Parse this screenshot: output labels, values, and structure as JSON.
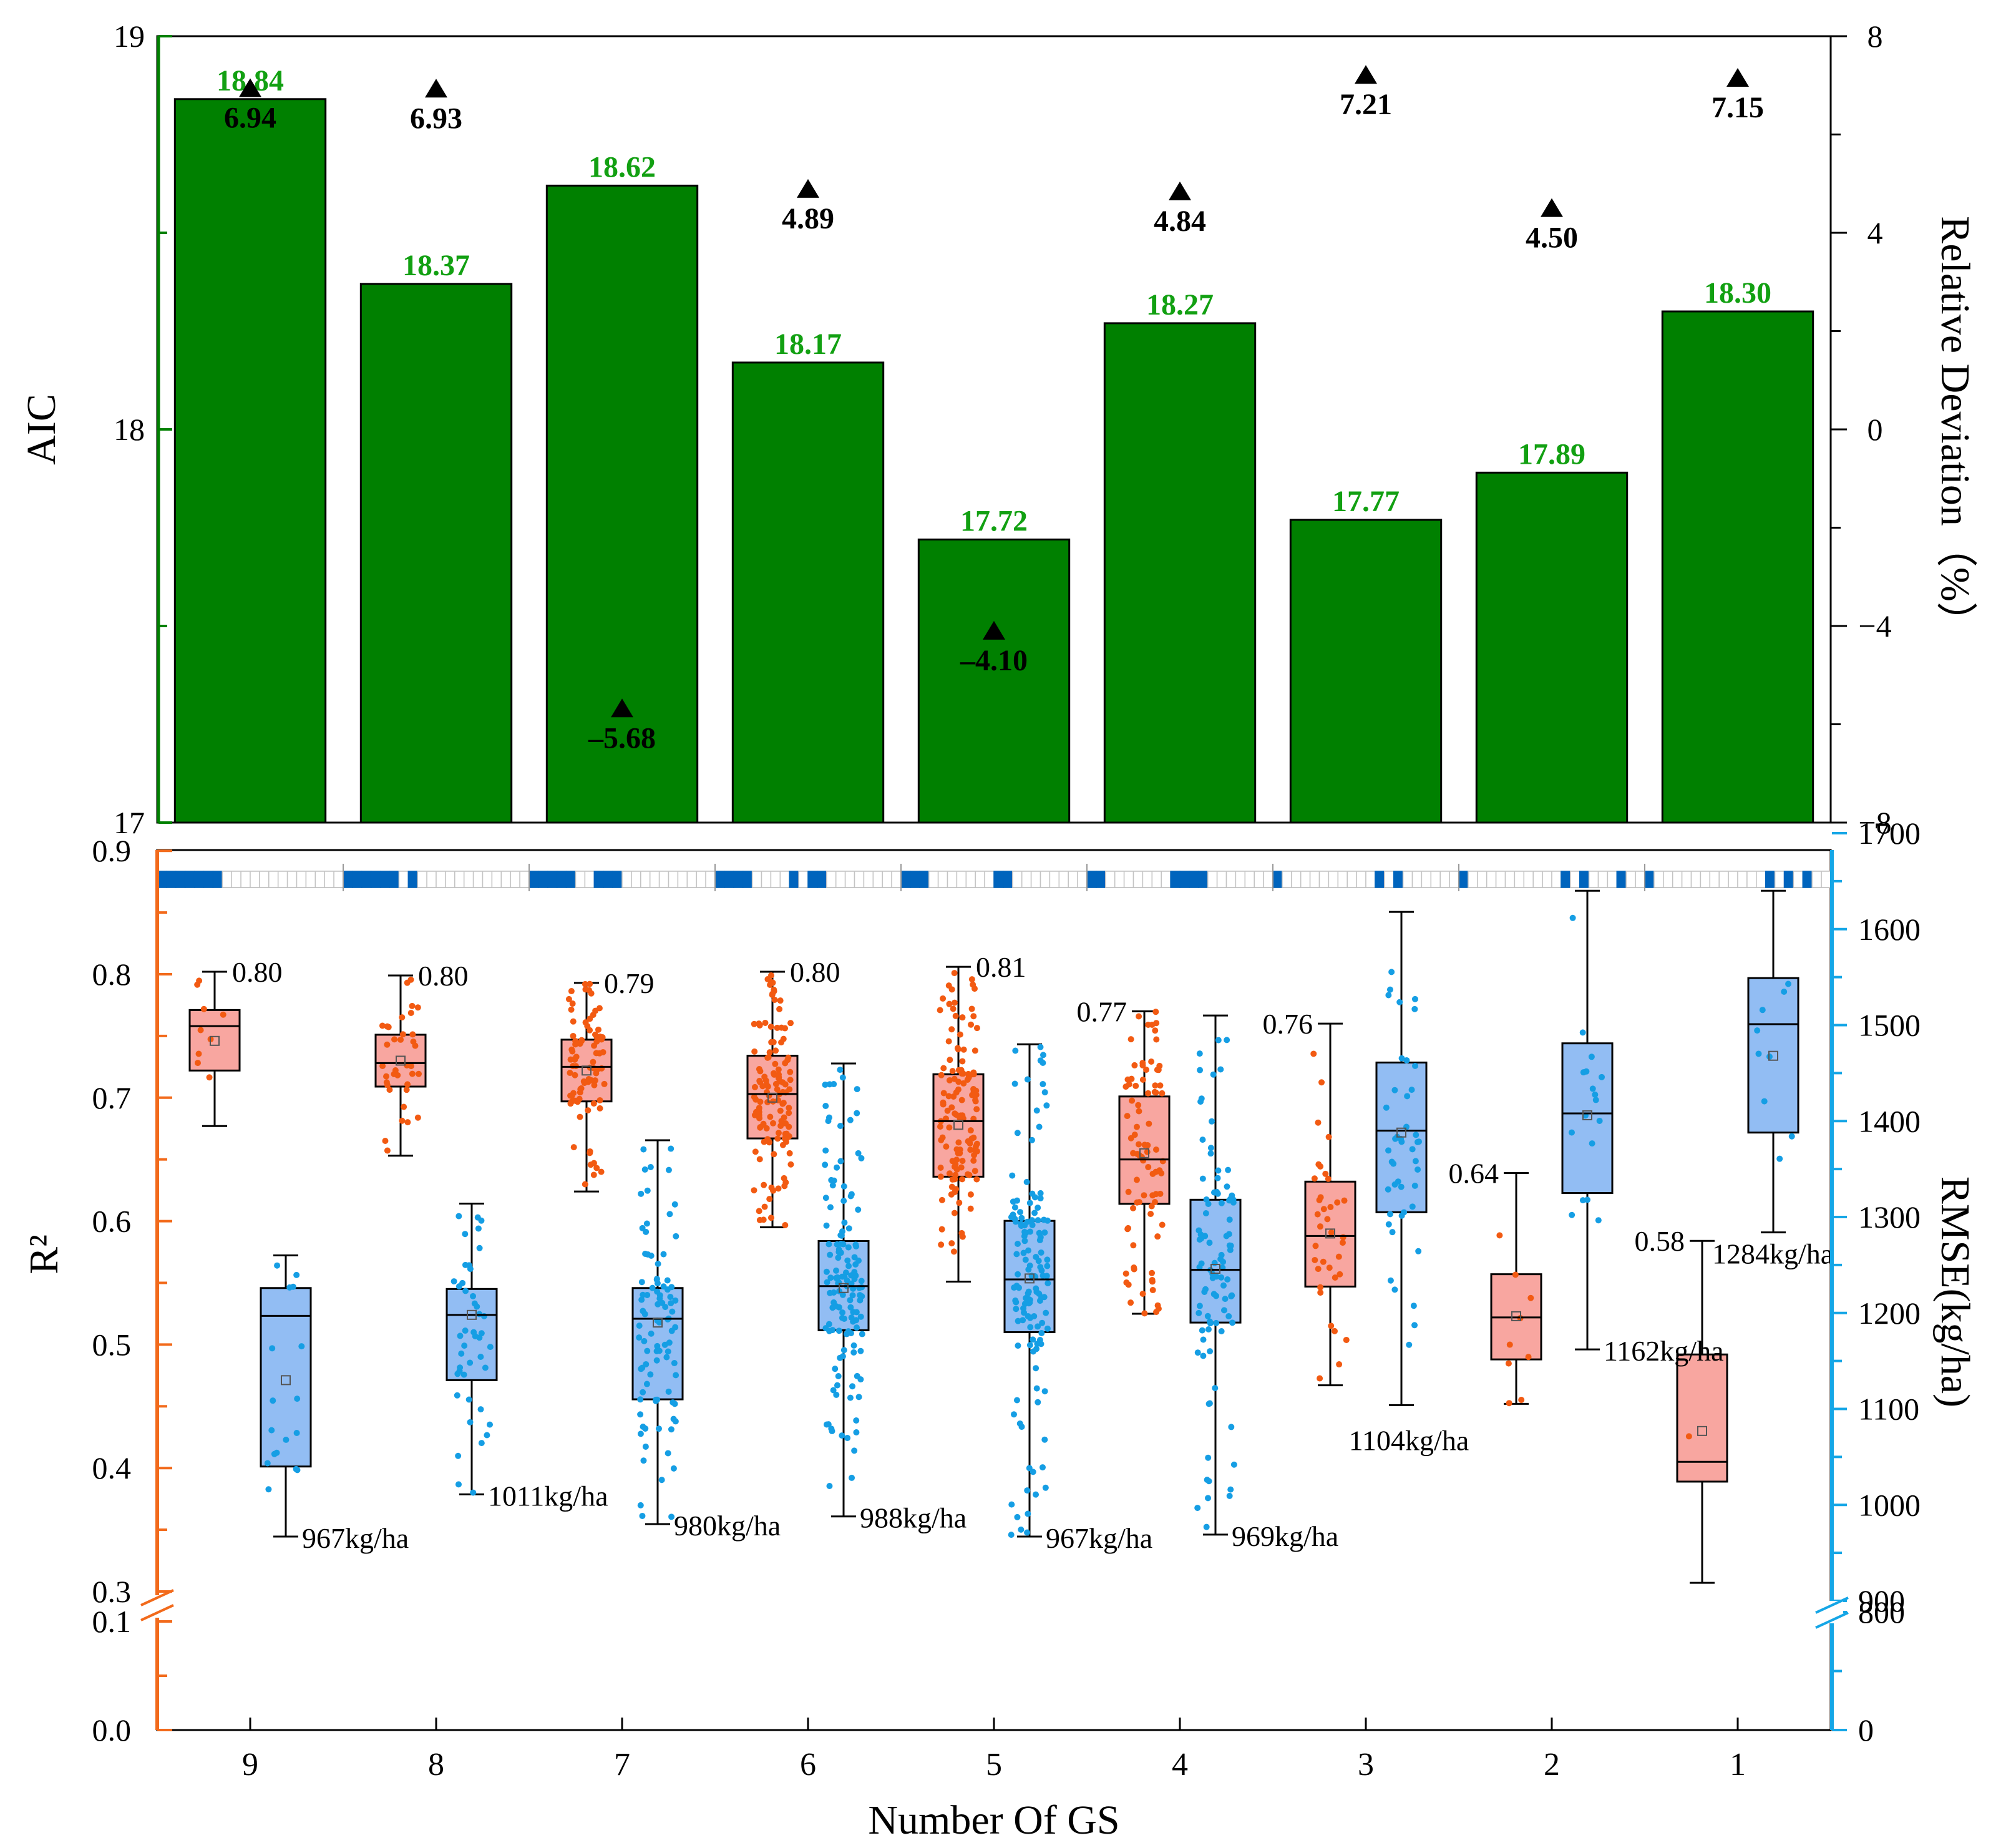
{
  "colors": {
    "bar": "#008000",
    "bar_label": "#12a012",
    "marker": "#000000",
    "r2_axis": "#f26a1b",
    "r2_box": "#f8a6a0",
    "r2_points": "#f25a12",
    "rmse_axis": "#15a6e6",
    "rmse_box": "#92bdf3",
    "rmse_points": "#159ee4",
    "strip_fill": "#0064bd"
  },
  "chart_data": [
    {
      "type": "bar",
      "categories": [
        "9",
        "8",
        "7",
        "6",
        "5",
        "4",
        "3",
        "2",
        "1"
      ],
      "series": [
        {
          "values": [
            18.84,
            18.37,
            18.62,
            18.17,
            17.72,
            18.27,
            17.77,
            17.89,
            18.3
          ]
        },
        {
          "values": [
            6.94,
            6.93,
            -5.68,
            4.89,
            -4.1,
            4.84,
            7.21,
            4.5,
            7.15
          ]
        }
      ],
      "value_labels": [
        "18.84",
        "18.37",
        "18.62",
        "18.17",
        "17.72",
        "18.27",
        "17.77",
        "17.89",
        "18.30"
      ],
      "marker_labels": [
        "6.94",
        "6.93",
        "–5.68",
        "4.89",
        "–4.10",
        "4.84",
        "7.21",
        "4.50",
        "7.15"
      ],
      "ylabel": "AIC",
      "ylim": [
        17,
        19
      ],
      "yticks": [
        "17",
        "18",
        "19"
      ],
      "y2label": "Relative Deviation（%）",
      "y2lim": [
        -8,
        8
      ],
      "y2ticks": [
        "−8",
        "−4",
        "0",
        "4",
        "8"
      ]
    },
    {
      "type": "box",
      "categories": [
        "9",
        "8",
        "7",
        "6",
        "5",
        "4",
        "3",
        "2",
        "1"
      ],
      "xlabel": "Number Of GS",
      "ylabel": "R²",
      "yticks": [
        "0.0",
        "0.1",
        "0.3",
        "0.4",
        "0.5",
        "0.6",
        "0.7",
        "0.8",
        "0.9"
      ],
      "y2label": "RMSE(kg/ha)",
      "y2ticks": [
        "0",
        "800",
        "900",
        "1000",
        "1100",
        "1200",
        "1300",
        "1400",
        "1500",
        "1600",
        "1700"
      ],
      "r2": {
        "counts": [
          9,
          36,
          84,
          126,
          126,
          84,
          36,
          9,
          1
        ],
        "q1": [
          0.722,
          0.709,
          0.697,
          0.667,
          0.636,
          0.614,
          0.547,
          0.488,
          0.389
        ],
        "median": [
          0.758,
          0.728,
          0.725,
          0.703,
          0.681,
          0.65,
          0.588,
          0.522,
          0.405
        ],
        "q3": [
          0.771,
          0.751,
          0.747,
          0.734,
          0.719,
          0.701,
          0.632,
          0.557,
          0.492
        ],
        "mean": [
          0.746,
          0.73,
          0.722,
          0.7,
          0.678,
          0.655,
          0.59,
          0.523,
          0.43
        ],
        "whisker_low": [
          0.677,
          0.653,
          0.624,
          0.595,
          0.551,
          0.525,
          0.467,
          0.452,
          0.307
        ],
        "whisker_high": [
          0.802,
          0.799,
          0.793,
          0.802,
          0.806,
          0.77,
          0.76,
          0.639,
          0.584
        ],
        "max_labels": [
          "0.80",
          "0.80",
          "0.79",
          "0.80",
          "0.81",
          "0.77",
          "0.76",
          "0.64",
          "0.58"
        ]
      },
      "rmse": {
        "q1": [
          1040,
          1130,
          1110,
          1182,
          1180,
          1190,
          1305,
          1325,
          1388
        ],
        "median": [
          1197,
          1198,
          1194,
          1228,
          1235,
          1245,
          1390,
          1408,
          1501
        ],
        "q3": [
          1226,
          1225,
          1226,
          1275,
          1296,
          1318,
          1461,
          1481,
          1549
        ],
        "mean": [
          1130,
          1198,
          1190,
          1226,
          1236,
          1246,
          1388,
          1406,
          1468
        ],
        "whisker_low": [
          967,
          1011,
          980,
          988,
          967,
          969,
          1104,
          1162,
          1284
        ],
        "whisker_high": [
          1260,
          1314,
          1380,
          1460,
          1480,
          1510,
          1618,
          1640,
          1640
        ],
        "min_labels": [
          "967kg/ha",
          "1011kg/ha",
          "980kg/ha",
          "988kg/ha",
          "967kg/ha",
          "969kg/ha",
          "1104kg/ha",
          "1162kg/ha",
          "1284kg/ha"
        ]
      },
      "strip": [
        "111111111",
        "111111000",
        "111110000",
        "111100000",
        "111000000",
        "110000000",
        "100000000",
        "011000000",
        "001100000",
        "001001000",
        "000111000",
        "000111110",
        "000001000",
        "000000111",
        "000000000",
        "000000001",
        "000000000",
        "000000011",
        "000000000",
        "000000000"
      ]
    }
  ]
}
